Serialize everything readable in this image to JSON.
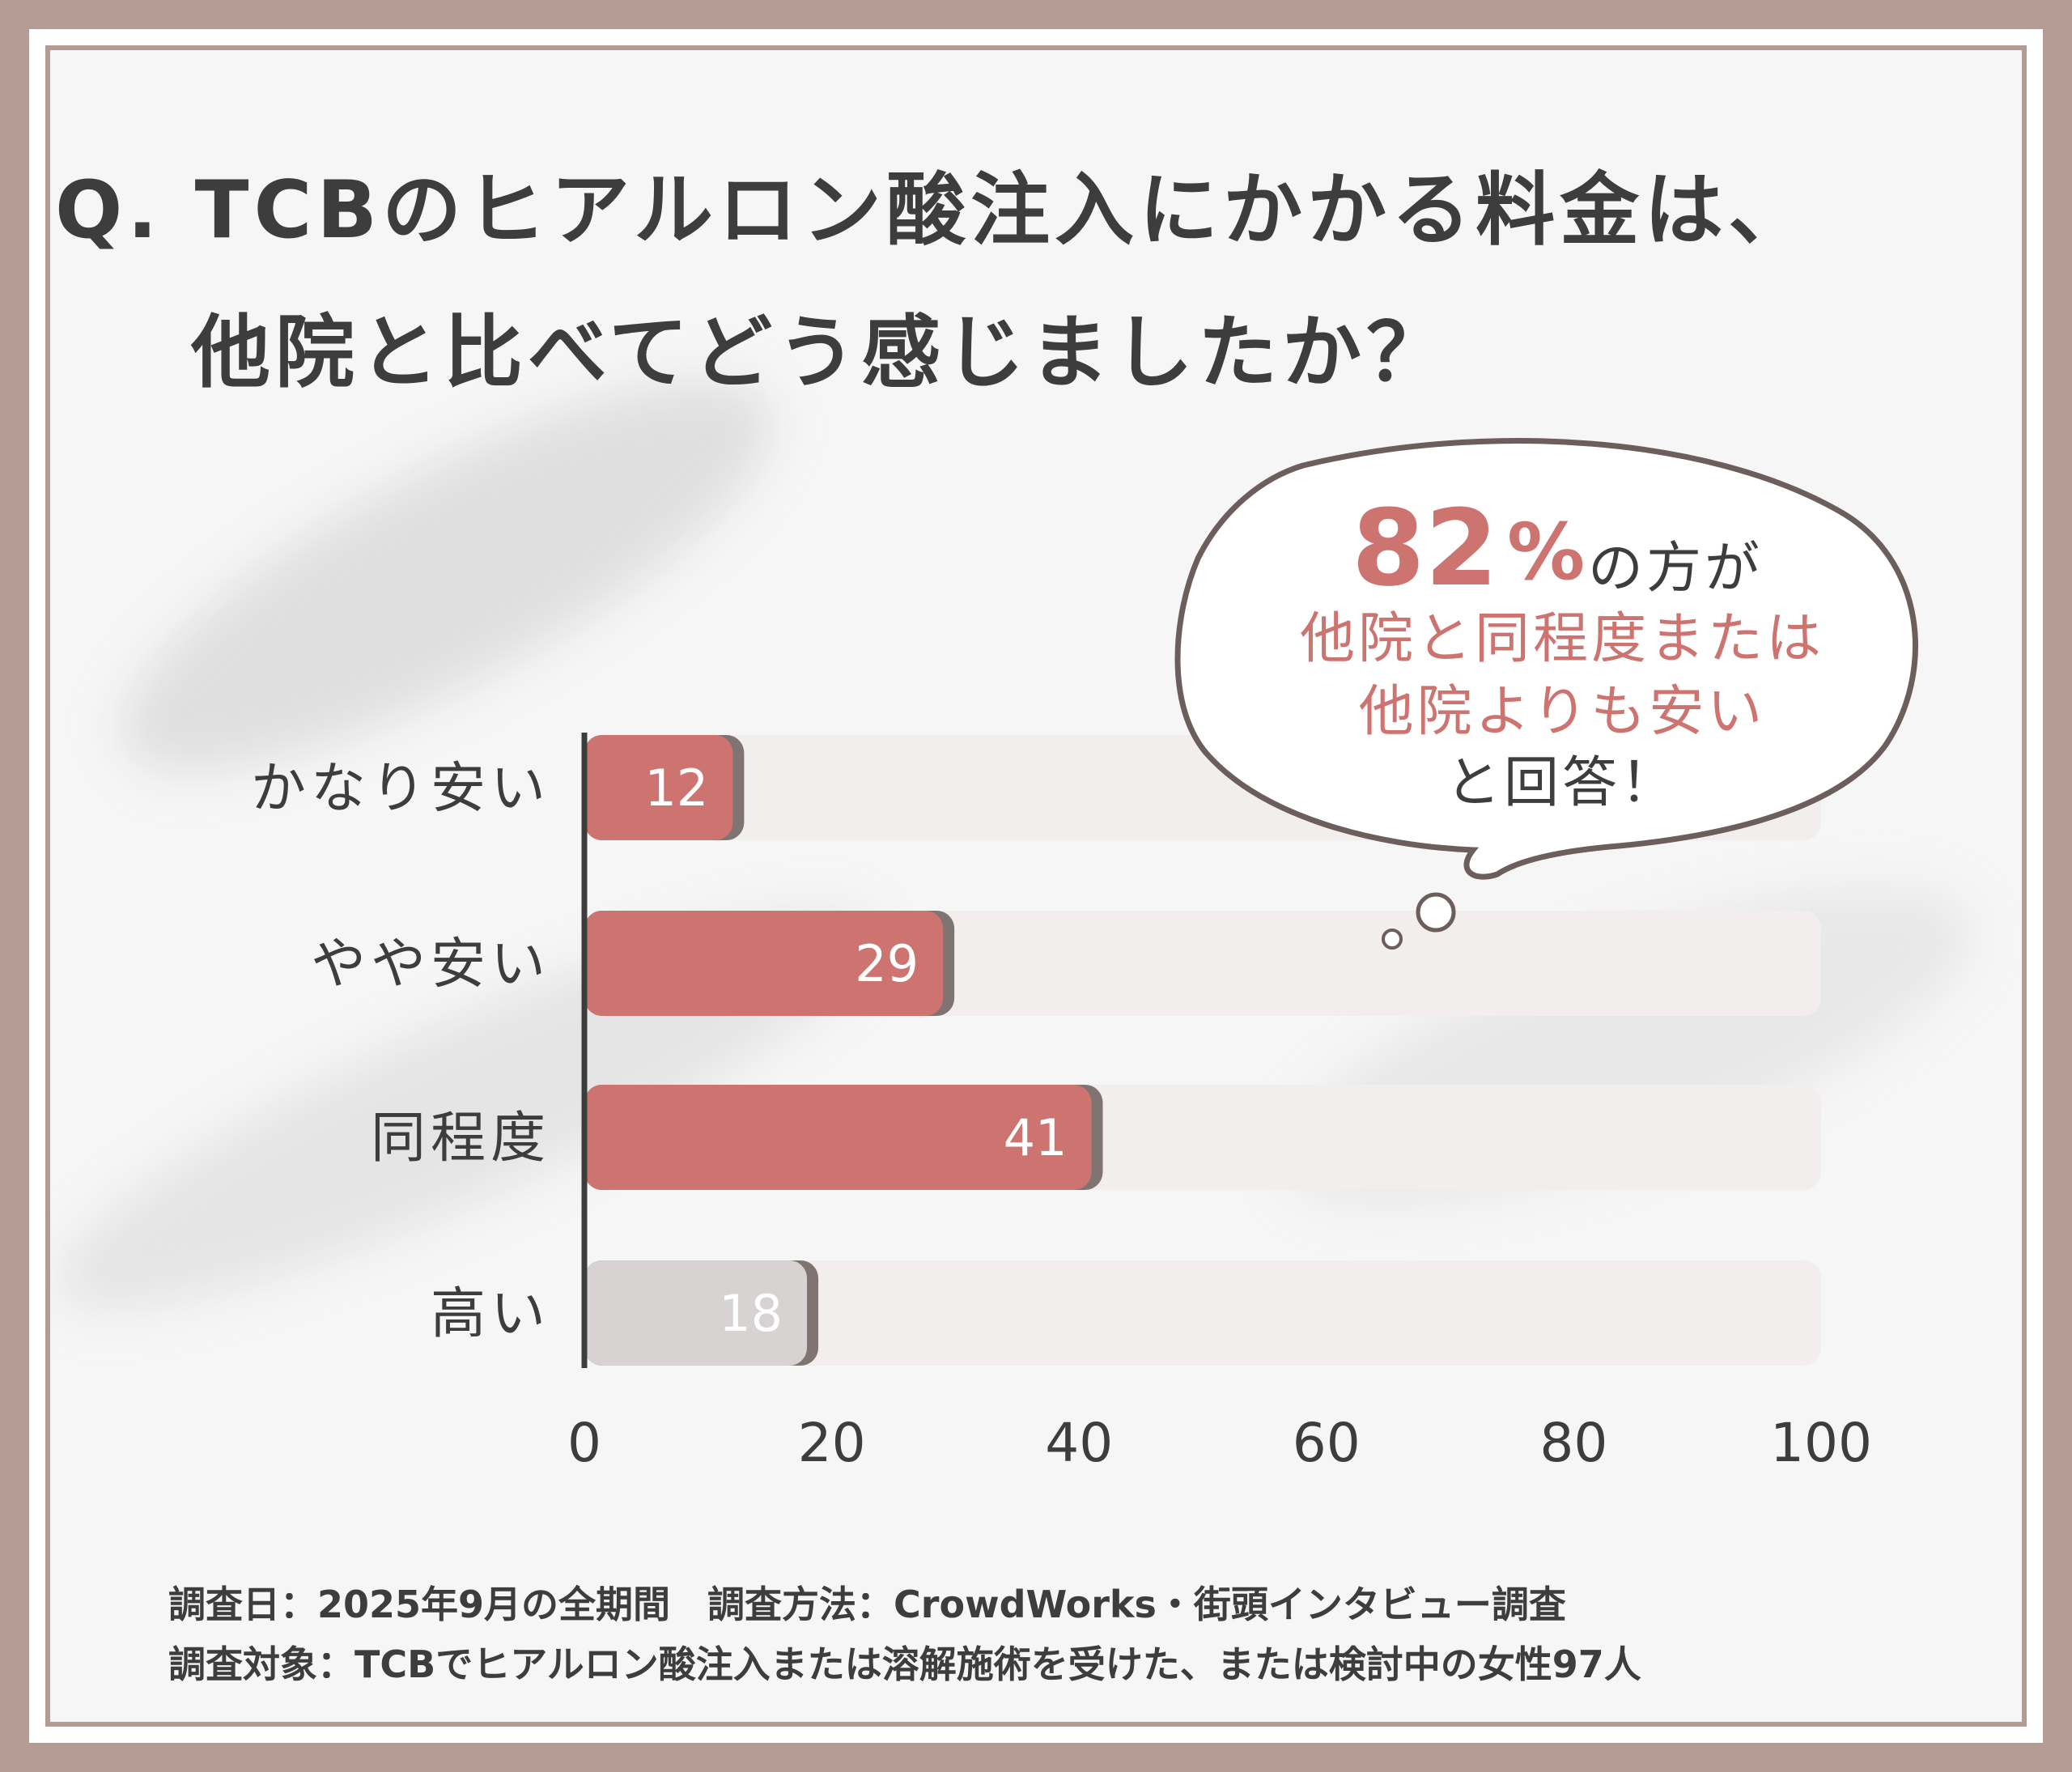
{
  "question": {
    "line1": "Q. TCBのヒアルロン酸注入にかかる料金は、",
    "line2": "他院と比べてどう感じましたか？"
  },
  "callout": {
    "percent_value": "82",
    "percent_sign": "%",
    "suffix": "の方が",
    "line2": "他院と同程度または",
    "line3": "他院よりも安い",
    "line4": "と回答！"
  },
  "chart_data": {
    "type": "bar",
    "orientation": "horizontal",
    "categories": [
      "かなり安い",
      "やや安い",
      "同程度",
      "高い"
    ],
    "values": [
      12,
      29,
      41,
      18
    ],
    "bar_colors": [
      "#cd7470",
      "#cd7470",
      "#cd7470",
      "#d6d3d2"
    ],
    "xticks": [
      "0",
      "20",
      "40",
      "60",
      "80",
      "100"
    ],
    "xlim": [
      0,
      100
    ],
    "grid": false
  },
  "colors": {
    "accent": "#cd7470",
    "frame": "#b49b93",
    "text": "#3d3d3d",
    "track": "#f2eeed",
    "gray_bar": "#d6d3d2"
  },
  "footnote": {
    "line1": "調査日：2025年9月の全期間　調査方法：CrowdWorks・街頭インタビュー調査",
    "line2": "調査対象：TCBでヒアルロン酸注入または溶解施術を受けた、または検討中の女性97人"
  }
}
